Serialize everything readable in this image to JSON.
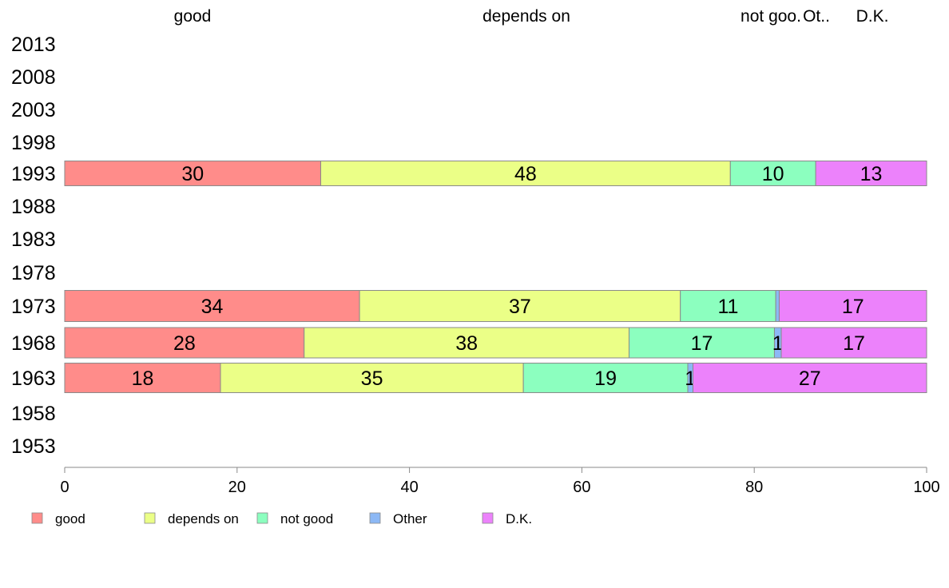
{
  "chart_data": {
    "type": "bar",
    "orientation": "horizontal",
    "stacked": true,
    "categories": [
      "2013",
      "2008",
      "2003",
      "1998",
      "1993",
      "1988",
      "1983",
      "1978",
      "1973",
      "1968",
      "1963",
      "1958",
      "1953"
    ],
    "column_labels": [
      "good",
      "depends on",
      "not goo.",
      "Ot..",
      "D.K."
    ],
    "series": [
      {
        "name": "good",
        "color": "#FF8C8A",
        "values": [
          null,
          null,
          null,
          null,
          30,
          null,
          null,
          null,
          34,
          28,
          18,
          null,
          null
        ]
      },
      {
        "name": "depends on",
        "color": "#EBFF87",
        "values": [
          null,
          null,
          null,
          null,
          48,
          null,
          null,
          null,
          37,
          38,
          35,
          null,
          null
        ]
      },
      {
        "name": "not good",
        "color": "#8CFFBF",
        "values": [
          null,
          null,
          null,
          null,
          10,
          null,
          null,
          null,
          11,
          17,
          19,
          null,
          null
        ]
      },
      {
        "name": "Other",
        "color": "#8CB8F5",
        "values": [
          null,
          null,
          null,
          null,
          0,
          null,
          null,
          null,
          0.4,
          0.8,
          0.6,
          null,
          null
        ]
      },
      {
        "name": "D.K.",
        "color": "#EC82FB",
        "values": [
          null,
          null,
          null,
          null,
          13,
          null,
          null,
          null,
          17,
          17,
          27,
          null,
          null
        ]
      }
    ],
    "data_labels": {
      "1993": [
        "30",
        "48",
        "10",
        "",
        "13"
      ],
      "1973": [
        "34",
        "37",
        "11",
        "",
        "17"
      ],
      "1968": [
        "28",
        "38",
        "17",
        "1",
        "17"
      ],
      "1963": [
        "18",
        "35",
        "19",
        "1",
        "27"
      ]
    },
    "xlim": [
      0,
      100
    ],
    "xticks": [
      0,
      20,
      40,
      60,
      80,
      100
    ],
    "legend_position": "bottom-left",
    "grid": false
  }
}
